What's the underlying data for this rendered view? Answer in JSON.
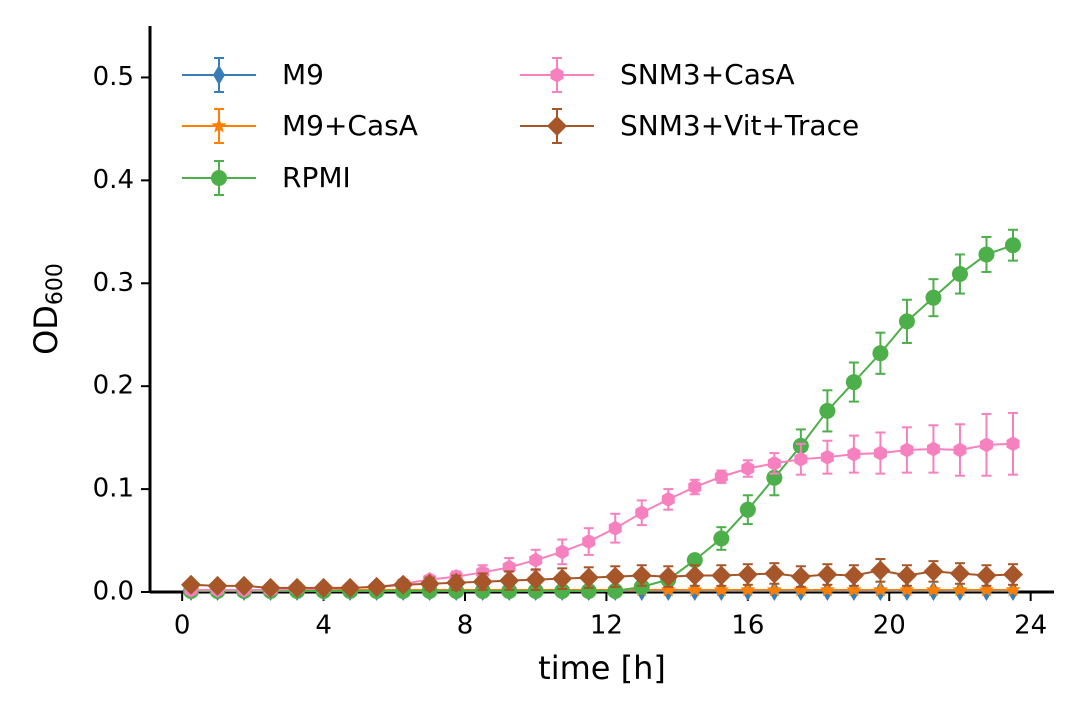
{
  "chart_data": {
    "type": "line",
    "x_label": "time [h]",
    "y_label": {
      "text": "OD",
      "subscript": "600"
    },
    "x": [
      0.25,
      1.0,
      1.75,
      2.5,
      3.25,
      4.0,
      4.75,
      5.5,
      6.25,
      7.0,
      7.75,
      8.5,
      9.25,
      10.0,
      10.75,
      11.5,
      12.25,
      13.0,
      13.75,
      14.5,
      15.25,
      16.0,
      16.75,
      17.5,
      18.25,
      19.0,
      19.75,
      20.5,
      21.25,
      22.0,
      22.75,
      23.5
    ],
    "xlim": [
      -0.91,
      24.66
    ],
    "xticks": [
      0,
      4,
      8,
      12,
      16,
      20,
      24
    ],
    "ylim": [
      0,
      0.55
    ],
    "yticks": [
      {
        "value": 0,
        "label": "0.0"
      },
      0.1,
      0.2,
      0.3,
      0.4,
      0.5
    ],
    "legend": "upper left",
    "series": [
      {
        "name": "M9",
        "color": "#377eb8",
        "marker": "thin_diamond",
        "values": [
          0.001,
          0.001,
          0.001,
          0.001,
          0.001,
          0.001,
          0.001,
          0.001,
          0.001,
          0.001,
          0.001,
          0.001,
          0.001,
          0.001,
          0.001,
          0.001,
          0.001,
          0.001,
          0.001,
          0.001,
          0.001,
          0.001,
          0.001,
          0.001,
          0.001,
          0.001,
          0.001,
          0.001,
          0.001,
          0.001,
          0.001,
          0.001
        ],
        "errors": [
          0.001,
          0.001,
          0.001,
          0.001,
          0.001,
          0.001,
          0.001,
          0.001,
          0.001,
          0.001,
          0.001,
          0.001,
          0.001,
          0.001,
          0.001,
          0.001,
          0.001,
          0.001,
          0.001,
          0.001,
          0.001,
          0.001,
          0.001,
          0.001,
          0.001,
          0.001,
          0.001,
          0.001,
          0.001,
          0.001,
          0.001,
          0.001
        ]
      },
      {
        "name": "M9+CasA",
        "color": "#ff7f00",
        "marker": "star",
        "values": [
          0.002,
          0.002,
          0.002,
          0.002,
          0.002,
          0.002,
          0.002,
          0.002,
          0.002,
          0.002,
          0.002,
          0.002,
          0.002,
          0.002,
          0.002,
          0.002,
          0.002,
          0.002,
          0.002,
          0.002,
          0.002,
          0.002,
          0.002,
          0.002,
          0.002,
          0.002,
          0.002,
          0.002,
          0.002,
          0.002,
          0.002,
          0.002
        ],
        "errors": [
          0.001,
          0.001,
          0.001,
          0.001,
          0.001,
          0.001,
          0.001,
          0.001,
          0.001,
          0.001,
          0.001,
          0.001,
          0.001,
          0.001,
          0.001,
          0.001,
          0.001,
          0.001,
          0.001,
          0.001,
          0.001,
          0.001,
          0.001,
          0.001,
          0.001,
          0.001,
          0.001,
          0.001,
          0.001,
          0.001,
          0.001,
          0.001
        ]
      },
      {
        "name": "RPMI",
        "color": "#4daf4a",
        "marker": "circle",
        "values": [
          0.001,
          0.001,
          0.001,
          0.001,
          0.001,
          0.001,
          0.001,
          0.001,
          0.001,
          0.001,
          0.001,
          0.001,
          0.001,
          0.001,
          0.001,
          0.001,
          0.001,
          0.005,
          0.012,
          0.031,
          0.052,
          0.08,
          0.111,
          0.142,
          0.176,
          0.204,
          0.232,
          0.263,
          0.286,
          0.309,
          0.328,
          0.337
        ],
        "errors": [
          0.001,
          0.001,
          0.001,
          0.001,
          0.001,
          0.001,
          0.001,
          0.001,
          0.001,
          0.001,
          0.001,
          0.001,
          0.001,
          0.001,
          0.001,
          0.001,
          0.001,
          0.002,
          0.003,
          0.005,
          0.011,
          0.014,
          0.017,
          0.016,
          0.02,
          0.019,
          0.02,
          0.021,
          0.018,
          0.019,
          0.017,
          0.015
        ]
      },
      {
        "name": "SNM3+CasA",
        "color": "#f781bf",
        "marker": "hexagon",
        "values": [
          0.002,
          0.002,
          0.002,
          0.002,
          0.003,
          0.003,
          0.004,
          0.005,
          0.008,
          0.012,
          0.015,
          0.019,
          0.024,
          0.031,
          0.039,
          0.049,
          0.062,
          0.077,
          0.09,
          0.102,
          0.112,
          0.12,
          0.125,
          0.129,
          0.131,
          0.134,
          0.135,
          0.138,
          0.139,
          0.138,
          0.143,
          0.144
        ],
        "errors": [
          0.001,
          0.001,
          0.001,
          0.001,
          0.001,
          0.001,
          0.001,
          0.001,
          0.001,
          0.003,
          0.005,
          0.007,
          0.009,
          0.01,
          0.012,
          0.013,
          0.014,
          0.012,
          0.01,
          0.007,
          0.006,
          0.008,
          0.01,
          0.015,
          0.016,
          0.018,
          0.02,
          0.022,
          0.023,
          0.025,
          0.03,
          0.03
        ]
      },
      {
        "name": "SNM3+Vit+Trace",
        "color": "#a65628",
        "marker": "diamond",
        "values": [
          0.007,
          0.006,
          0.006,
          0.004,
          0.004,
          0.004,
          0.004,
          0.005,
          0.007,
          0.008,
          0.009,
          0.01,
          0.011,
          0.012,
          0.013,
          0.014,
          0.015,
          0.016,
          0.015,
          0.016,
          0.016,
          0.017,
          0.018,
          0.015,
          0.017,
          0.016,
          0.021,
          0.016,
          0.02,
          0.018,
          0.016,
          0.017
        ],
        "errors": [
          0.003,
          0.003,
          0.003,
          0.003,
          0.003,
          0.003,
          0.003,
          0.004,
          0.005,
          0.006,
          0.007,
          0.008,
          0.009,
          0.01,
          0.01,
          0.01,
          0.01,
          0.01,
          0.01,
          0.01,
          0.01,
          0.01,
          0.01,
          0.01,
          0.01,
          0.01,
          0.011,
          0.01,
          0.01,
          0.01,
          0.01,
          0.01
        ]
      }
    ]
  }
}
